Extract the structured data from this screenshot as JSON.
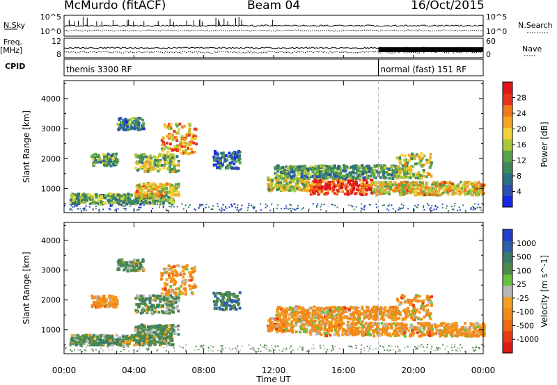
{
  "header": {
    "station": "McMurdo (fitACF)",
    "beam": "Beam 04",
    "date": "16/Oct/2015"
  },
  "status_panel": {
    "nsky_label": "N.Sky",
    "nsearch_label": "N.Search",
    "freq_label": "Freq.",
    "freq_unit": "[MHz]",
    "nave_label": "Nave",
    "cpid_label": "CPID",
    "left_ticks_top": [
      "10^5",
      "10^0"
    ],
    "right_ticks_top": [
      "10^5",
      "10^0"
    ],
    "left_ticks_freq": [
      "12",
      "8"
    ],
    "right_ticks_nave": [
      "60",
      "0"
    ],
    "cpid_modes": [
      {
        "name": "themis 3300 RF",
        "start_hour": 0,
        "end_hour": 18.0
      },
      {
        "name": "normal (fast) 151 RF",
        "start_hour": 18.0,
        "end_hour": 24
      }
    ]
  },
  "x_axis": {
    "title": "Time UT",
    "ticks": [
      "00:00",
      "04:00",
      "08:00",
      "12:00",
      "16:00",
      "20:00",
      "00:00"
    ],
    "range_hours": [
      0,
      24
    ]
  },
  "colors": {
    "power": [
      "#1a26e6",
      "#2b4fb3",
      "#2e6f86",
      "#3f8a5a",
      "#5aa54a",
      "#a9c83a",
      "#f2d23a",
      "#f5a623",
      "#f07a1a",
      "#e8341c",
      "#e0161a"
    ],
    "velocity": [
      "#1f3ec9",
      "#2f5ea8",
      "#3a7a6a",
      "#4c8c4a",
      "#66c23a",
      "#b8b8b8",
      "#f5a020",
      "#f08a1a",
      "#ee6a12",
      "#e83a16",
      "#e01818"
    ]
  },
  "chart_data": [
    {
      "type": "heatmap",
      "name": "Power",
      "ylabel": "Slant Range [km]",
      "ylim": [
        200,
        4600
      ],
      "yticks": [
        1000,
        2000,
        3000,
        4000
      ],
      "colorbar_label": "Power [dB]",
      "colorbar_ticks": [
        "4",
        "8",
        "12",
        "16",
        "20",
        "24",
        "28"
      ],
      "colorbar_range": [
        0,
        30
      ]
    },
    {
      "type": "heatmap",
      "name": "Velocity",
      "ylabel": "Slant Range [km]",
      "ylim": [
        200,
        4600
      ],
      "yticks": [
        1000,
        2000,
        3000,
        4000
      ],
      "colorbar_label": "Velocity [m s^-1]",
      "colorbar_ticks": [
        "1000",
        "500",
        "100",
        "25",
        "-25",
        "-100",
        "-500",
        "-1000"
      ]
    }
  ]
}
